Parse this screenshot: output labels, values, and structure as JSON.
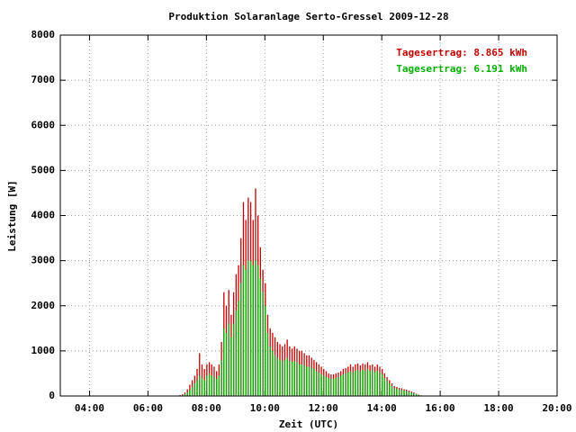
{
  "chart_data": {
    "type": "impulse",
    "title": "Produktion Solaranlage Serto-Gressel 2009-12-28",
    "xlabel": "Zeit (UTC)",
    "ylabel": "Leistung [W]",
    "x": [
      "07:00",
      "07:05",
      "07:10",
      "07:15",
      "07:20",
      "07:25",
      "07:30",
      "07:35",
      "07:40",
      "07:45",
      "07:50",
      "07:55",
      "08:00",
      "08:05",
      "08:10",
      "08:15",
      "08:20",
      "08:25",
      "08:30",
      "08:35",
      "08:40",
      "08:45",
      "08:50",
      "08:55",
      "09:00",
      "09:05",
      "09:10",
      "09:15",
      "09:20",
      "09:25",
      "09:30",
      "09:35",
      "09:40",
      "09:45",
      "09:50",
      "09:55",
      "10:00",
      "10:05",
      "10:10",
      "10:15",
      "10:20",
      "10:25",
      "10:30",
      "10:35",
      "10:40",
      "10:45",
      "10:50",
      "10:55",
      "11:00",
      "11:05",
      "11:10",
      "11:15",
      "11:20",
      "11:25",
      "11:30",
      "11:35",
      "11:40",
      "11:45",
      "11:50",
      "11:55",
      "12:00",
      "12:05",
      "12:10",
      "12:15",
      "12:20",
      "12:25",
      "12:30",
      "12:35",
      "12:40",
      "12:45",
      "12:50",
      "12:55",
      "13:00",
      "13:05",
      "13:10",
      "13:15",
      "13:20",
      "13:25",
      "13:30",
      "13:35",
      "13:40",
      "13:45",
      "13:50",
      "13:55",
      "14:00",
      "14:05",
      "14:10",
      "14:15",
      "14:20",
      "14:25",
      "14:30",
      "14:35",
      "14:40",
      "14:45",
      "14:50",
      "14:55",
      "15:00",
      "15:05",
      "15:10",
      "15:15",
      "15:20"
    ],
    "series": [
      {
        "name": "Tagesertrag: 8.865 kWh",
        "color": "#c00000",
        "values": [
          10,
          20,
          40,
          80,
          150,
          250,
          350,
          450,
          600,
          950,
          700,
          600,
          700,
          750,
          700,
          650,
          550,
          700,
          1200,
          2300,
          2000,
          2350,
          1800,
          2300,
          2700,
          2900,
          3500,
          4300,
          3900,
          4400,
          4300,
          3900,
          4600,
          4000,
          3300,
          2800,
          2500,
          1800,
          1500,
          1400,
          1300,
          1200,
          1150,
          1100,
          1150,
          1250,
          1100,
          1050,
          1100,
          1050,
          1000,
          1000,
          950,
          900,
          900,
          850,
          800,
          750,
          700,
          650,
          600,
          550,
          500,
          480,
          480,
          500,
          520,
          550,
          600,
          620,
          650,
          700,
          650,
          700,
          720,
          680,
          720,
          700,
          750,
          680,
          700,
          650,
          700,
          650,
          600,
          500,
          420,
          350,
          280,
          220,
          200,
          180,
          170,
          150,
          140,
          120,
          100,
          80,
          50,
          30,
          15
        ]
      },
      {
        "name": "Tagesertrag: 6.191 kWh",
        "color": "#00b000",
        "values": [
          5,
          10,
          20,
          40,
          80,
          130,
          200,
          280,
          350,
          450,
          400,
          350,
          450,
          500,
          450,
          420,
          380,
          450,
          800,
          1500,
          1400,
          1600,
          1300,
          1600,
          1900,
          2100,
          2500,
          2900,
          2800,
          3000,
          3000,
          2900,
          3000,
          2900,
          2600,
          2300,
          2000,
          1400,
          1100,
          1000,
          900,
          850,
          800,
          780,
          800,
          850,
          780,
          750,
          780,
          750,
          700,
          700,
          680,
          650,
          650,
          620,
          600,
          550,
          520,
          480,
          450,
          420,
          400,
          380,
          380,
          400,
          420,
          450,
          480,
          500,
          520,
          550,
          520,
          560,
          580,
          550,
          580,
          560,
          600,
          550,
          570,
          530,
          560,
          520,
          480,
          400,
          340,
          280,
          220,
          180,
          160,
          140,
          130,
          120,
          110,
          90,
          80,
          60,
          40,
          25,
          10
        ]
      }
    ],
    "xlim": [
      "03:00",
      "20:00"
    ],
    "xticks": [
      "04:00",
      "06:00",
      "08:00",
      "10:00",
      "12:00",
      "14:00",
      "16:00",
      "18:00",
      "20:00"
    ],
    "ylim": [
      0,
      8000
    ],
    "yticks": [
      0,
      1000,
      2000,
      3000,
      4000,
      5000,
      6000,
      7000,
      8000
    ],
    "grid": true,
    "legend": "upper right"
  }
}
